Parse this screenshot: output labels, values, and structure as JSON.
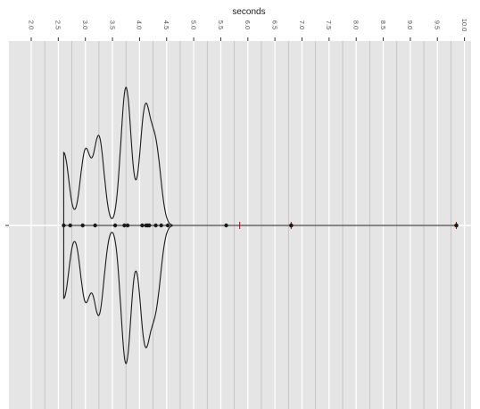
{
  "chart_data": {
    "type": "violin",
    "title": "",
    "xlabel": "seconds",
    "ylabel": "",
    "orientation": "horizontal",
    "axis_position": "top",
    "tick_label_rotation_deg": 90,
    "xlim": [
      1.75,
      10.2
    ],
    "x_ticks": [
      2.0,
      2.5,
      3.0,
      3.5,
      4.0,
      4.5,
      5.0,
      5.5,
      6.0,
      6.5,
      7.0,
      7.5,
      8.0,
      8.5,
      9.0,
      9.5,
      10.0
    ],
    "x_tick_labels": [
      "2.0",
      "2.5",
      "3.0",
      "3.5",
      "4.0",
      "4.5",
      "5.0",
      "5.5",
      "6.0",
      "6.5",
      "7.0",
      "7.5",
      "8.0",
      "8.5",
      "9.0",
      "9.5",
      "10.0"
    ],
    "y_tick_labels": [
      ""
    ],
    "grid": true,
    "panel_background": "#e5e5e5",
    "grid_color": "#ffffff",
    "density_peaks": [
      {
        "x": 2.6,
        "density": 0.65
      },
      {
        "x": 3.0,
        "density": 0.66
      },
      {
        "x": 3.25,
        "density": 0.78
      },
      {
        "x": 3.75,
        "density": 1.23
      },
      {
        "x": 4.1,
        "density": 1.0
      },
      {
        "x": 4.3,
        "density": 0.67
      }
    ],
    "points": [
      2.6,
      2.72,
      2.95,
      3.18,
      3.55,
      3.72,
      3.78,
      4.05,
      4.12,
      4.15,
      4.18,
      4.3,
      4.4,
      4.52,
      5.6
    ],
    "outliers": [
      5.85,
      6.8,
      9.85
    ],
    "line_color": "#1a1a1a",
    "outlier_color": "#cc0000"
  }
}
